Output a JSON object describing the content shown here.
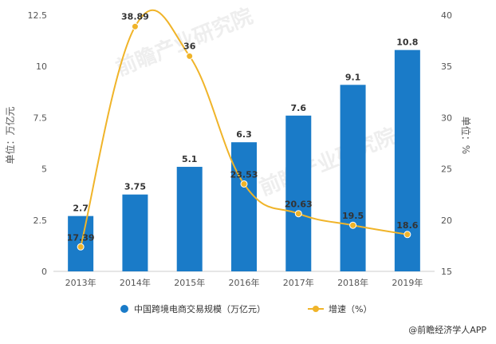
{
  "chart_data": {
    "type": "bar",
    "categories": [
      "2013年",
      "2014年",
      "2015年",
      "2016年",
      "2017年",
      "2018年",
      "2019年"
    ],
    "series": [
      {
        "name": "中国跨境电商交易规模（万亿元）",
        "type": "bar",
        "axis": "left",
        "values": [
          2.7,
          3.75,
          5.1,
          6.3,
          7.6,
          9.1,
          10.8
        ],
        "labels": [
          "2.7",
          "3.75",
          "5.1",
          "6.3",
          "7.6",
          "9.1",
          "10.8"
        ],
        "color": "#1a7bc8"
      },
      {
        "name": "增速（%）",
        "type": "line",
        "axis": "right",
        "values": [
          17.39,
          38.89,
          36,
          23.53,
          20.63,
          19.5,
          18.6
        ],
        "labels": [
          "17.39",
          "38.89",
          "36",
          "23.53",
          "20.63",
          "19.5",
          "18.6"
        ],
        "color": "#f0b429"
      }
    ],
    "ylabel_left": "单位：万亿元",
    "ylabel_right": "单位：%",
    "ylim_left": [
      0,
      12.5
    ],
    "ylim_right": [
      15,
      40
    ],
    "yticks_left": [
      "0",
      "2.5",
      "5",
      "7.5",
      "10",
      "12.5"
    ],
    "yticks_right": [
      "15",
      "20",
      "25",
      "30",
      "35",
      "40"
    ],
    "legend_position": "bottom",
    "grid": false
  },
  "source": "@前瞻经济学人APP",
  "watermark": "前瞻产业研究院"
}
